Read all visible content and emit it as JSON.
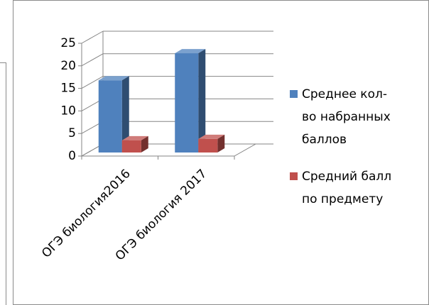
{
  "chart_data": {
    "type": "bar3d",
    "categories": [
      "ОГЭ биология2016",
      "ОГЭ биология 2017"
    ],
    "series": [
      {
        "name": "Среднее кол-во набранных баллов",
        "color": "#4f81bd",
        "values": [
          16,
          22
        ]
      },
      {
        "name": "Средний балл по предмету",
        "color": "#c0504d",
        "values": [
          2.7,
          3
        ]
      }
    ],
    "ylim": [
      0,
      25
    ],
    "yticks": [
      0,
      5,
      10,
      15,
      20,
      25
    ],
    "grid": true,
    "legend": "right"
  }
}
